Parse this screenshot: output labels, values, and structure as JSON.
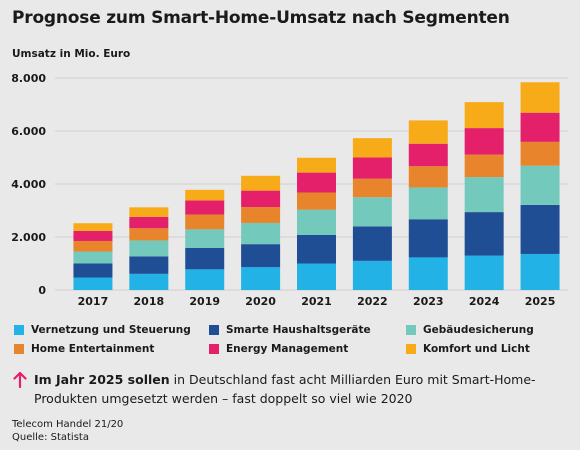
{
  "title": "Prognose zum Smart-Home-Umsatz nach Segmenten",
  "chart_data": {
    "type": "bar",
    "stacked": true,
    "title": "Prognose zum Smart-Home-Umsatz nach Segmenten",
    "ylabel": "Umsatz in Mio. Euro",
    "xlabel": "",
    "categories": [
      "2017",
      "2018",
      "2019",
      "2020",
      "2021",
      "2022",
      "2023",
      "2024",
      "2025"
    ],
    "yticks": [
      "0",
      "2.000",
      "4.000",
      "6.000",
      "8.000"
    ],
    "ytick_values": [
      0,
      2000,
      4000,
      6000,
      8000
    ],
    "ylim": [
      0,
      8000
    ],
    "grid": true,
    "legend_position": "bottom",
    "series": [
      {
        "name": "Vernetzung und Steuerung",
        "color": "#22b2e6",
        "values": [
          470,
          610,
          780,
          860,
          1000,
          1100,
          1230,
          1300,
          1360
        ]
      },
      {
        "name": "Smarte Haushaltsgeräte",
        "color": "#1f4e95",
        "values": [
          530,
          660,
          810,
          870,
          1080,
          1300,
          1440,
          1640,
          1850
        ]
      },
      {
        "name": "Gebäudesicherung",
        "color": "#74c9bd",
        "values": [
          450,
          600,
          700,
          800,
          950,
          1100,
          1200,
          1320,
          1480
        ]
      },
      {
        "name": "Home Entertainment",
        "color": "#e8842b",
        "values": [
          400,
          460,
          560,
          600,
          650,
          700,
          800,
          850,
          900
        ]
      },
      {
        "name": "Energy Management",
        "color": "#e5206a",
        "values": [
          380,
          430,
          530,
          620,
          750,
          800,
          850,
          1000,
          1100
        ]
      },
      {
        "name": "Komfort und Licht",
        "color": "#f7ab19",
        "values": [
          290,
          360,
          400,
          560,
          560,
          730,
          880,
          980,
          1150
        ]
      }
    ]
  },
  "note": {
    "bold": "Im Jahr 2025 sollen",
    "text": " in Deutschland fast acht Milliarden Euro mit Smart-Home-Produkten umgesetzt werden – fast doppelt so viel wie 2020",
    "arrow_color": "#e5206a"
  },
  "footer": {
    "publication": "Telecom Handel 21/20",
    "source": "Quelle: Statista"
  }
}
